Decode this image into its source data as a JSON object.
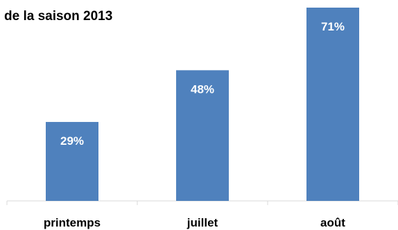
{
  "chart_data": {
    "type": "bar",
    "title": "de la saison 2013",
    "categories": [
      "printemps",
      "juillet",
      "août"
    ],
    "values": [
      29,
      48,
      71
    ],
    "data_labels": [
      "29%",
      "48%",
      "71%"
    ],
    "xlabel": "",
    "ylabel": "",
    "ylim": [
      0,
      100
    ],
    "grid": false,
    "legend": "none",
    "colors": {
      "bar": "#4F81BD",
      "data_label": "#FFFFFF",
      "axis": "#D9D9D9"
    }
  }
}
